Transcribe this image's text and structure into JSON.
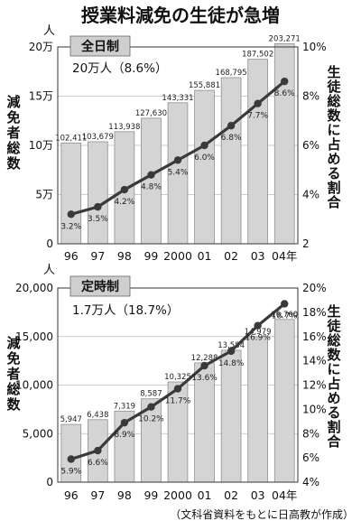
{
  "title": "授業料減免の生徒が急増",
  "source": "（文科省資料をもとに日高教が作成）",
  "chart_data": [
    {
      "type": "bar",
      "name": "全日制",
      "summary": "20万人（8.6%）",
      "categories": [
        "96",
        "97",
        "98",
        "99",
        "2000",
        "01",
        "02",
        "03",
        "04年"
      ],
      "series": [
        {
          "name": "減免者総数",
          "type": "bar",
          "axis": "left",
          "values": [
            102411,
            103679,
            113938,
            127630,
            143331,
            155881,
            168795,
            187502,
            203271
          ],
          "labels": [
            "102,411",
            "103,679",
            "113,938",
            "127,630",
            "143,331",
            "155,881",
            "168,795",
            "187,502",
            "203,271"
          ]
        },
        {
          "name": "生徒総数に占める割合",
          "type": "line",
          "axis": "right",
          "values": [
            3.2,
            3.5,
            4.2,
            4.8,
            5.4,
            6.0,
            6.8,
            7.7,
            8.6
          ],
          "labels": [
            "3.2%",
            "3.5%",
            "4.2%",
            "4.8%",
            "5.4%",
            "6.0%",
            "6.8%",
            "7.7%",
            "8.6%"
          ]
        }
      ],
      "ylabel": "減免者総数",
      "y2label": "生徒総数に占める割合",
      "yunit": "人",
      "ylim": [
        0,
        200000
      ],
      "yticks": [
        0,
        50000,
        100000,
        150000,
        200000
      ],
      "yticklabels": [
        "0",
        "5万",
        "10万",
        "15万",
        "20万"
      ],
      "y2lim": [
        2,
        10
      ],
      "y2ticks": [
        2,
        4,
        6,
        8,
        10
      ],
      "y2ticklabels": [
        "2",
        "4%",
        "6%",
        "8%",
        "10%"
      ],
      "grid": true
    },
    {
      "type": "bar",
      "name": "定時制",
      "summary": "1.7万人（18.7%）",
      "categories": [
        "96",
        "97",
        "98",
        "99",
        "2000",
        "01",
        "02",
        "03",
        "04年"
      ],
      "series": [
        {
          "name": "減免者総数",
          "type": "bar",
          "axis": "left",
          "values": [
            5947,
            6438,
            7319,
            8587,
            10325,
            12288,
            13584,
            14979,
            16760
          ],
          "labels": [
            "5,947",
            "6,438",
            "7,319",
            "8,587",
            "10,325",
            "12,288",
            "13,584",
            "14,979",
            "16,760"
          ]
        },
        {
          "name": "生徒総数に占める割合",
          "type": "line",
          "axis": "right",
          "values": [
            5.9,
            6.6,
            8.9,
            10.2,
            11.7,
            13.6,
            14.8,
            16.9,
            18.7
          ],
          "labels": [
            "5.9%",
            "6.6%",
            "8.9%",
            "10.2%",
            "11.7%",
            "13.6%",
            "14.8%",
            "16.9%",
            "18.7%"
          ]
        }
      ],
      "ylabel": "減免者総数",
      "y2label": "生徒総数に占める割合",
      "yunit": "人",
      "ylim": [
        0,
        20000
      ],
      "yticks": [
        0,
        5000,
        10000,
        15000,
        20000
      ],
      "yticklabels": [
        "0",
        "5,000",
        "10,000",
        "15,000",
        "20,000"
      ],
      "y2lim": [
        4,
        20
      ],
      "y2ticks": [
        4,
        6,
        8,
        10,
        12,
        14,
        16,
        18,
        20
      ],
      "y2ticklabels": [
        "4%",
        "6%",
        "8%",
        "10%",
        "12%",
        "14%",
        "16%",
        "18%",
        "20%"
      ],
      "grid": true
    }
  ]
}
